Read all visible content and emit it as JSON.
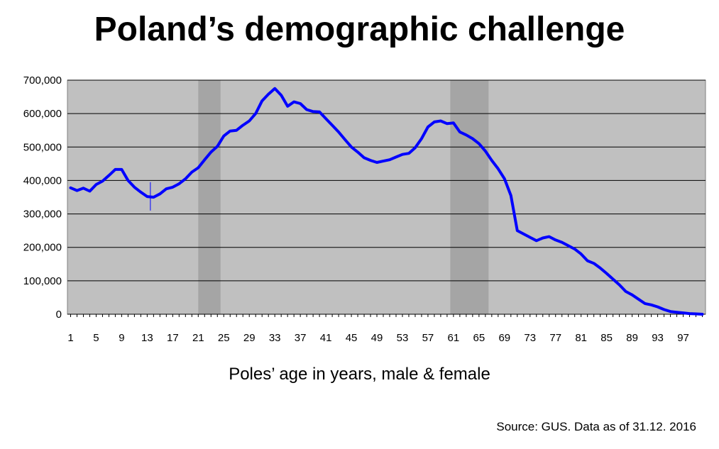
{
  "title": "Poland’s demographic challenge",
  "source": "Source: GUS. Data as of  31.12. 2016",
  "chart_data": {
    "type": "line",
    "xlabel": "Poles’ age in years, male & female",
    "ylabel": "",
    "xlim": [
      1,
      100
    ],
    "ylim": [
      0,
      700000
    ],
    "grid": true,
    "y_ticks": [
      0,
      100000,
      200000,
      300000,
      400000,
      500000,
      600000,
      700000
    ],
    "y_tick_labels": [
      "0",
      "100,000",
      "200,000",
      "300,000",
      "400,000",
      "500,000",
      "600,000",
      "700,000"
    ],
    "x_ticks": [
      1,
      5,
      9,
      13,
      17,
      21,
      25,
      29,
      33,
      37,
      41,
      45,
      49,
      53,
      57,
      61,
      65,
      69,
      73,
      77,
      81,
      85,
      89,
      93,
      97
    ],
    "x_tick_labels": [
      "1",
      "5",
      "9",
      "13",
      "17",
      "21",
      "25",
      "29",
      "33",
      "37",
      "41",
      "45",
      "49",
      "53",
      "57",
      "61",
      "65",
      "69",
      "73",
      "77",
      "81",
      "85",
      "89",
      "93",
      "97"
    ],
    "shaded_bands": [
      [
        21,
        24.5
      ],
      [
        60.5,
        66.5
      ]
    ],
    "marker_line": {
      "x": 13.5,
      "y_range": [
        310000,
        395000
      ]
    },
    "colors": {
      "line": "#0000ff",
      "plot_bg": "#c0c0c0",
      "band": "#a5a5a5",
      "grid": "#000000"
    },
    "x": [
      1,
      2,
      3,
      4,
      5,
      6,
      7,
      8,
      9,
      10,
      11,
      12,
      13,
      14,
      15,
      16,
      17,
      18,
      19,
      20,
      21,
      22,
      23,
      24,
      25,
      26,
      27,
      28,
      29,
      30,
      31,
      32,
      33,
      34,
      35,
      36,
      37,
      38,
      39,
      40,
      41,
      42,
      43,
      44,
      45,
      46,
      47,
      48,
      49,
      50,
      51,
      52,
      53,
      54,
      55,
      56,
      57,
      58,
      59,
      60,
      61,
      62,
      63,
      64,
      65,
      66,
      67,
      68,
      69,
      70,
      71,
      72,
      73,
      74,
      75,
      76,
      77,
      78,
      79,
      80,
      81,
      82,
      83,
      84,
      85,
      86,
      87,
      88,
      89,
      90,
      91,
      92,
      93,
      94,
      95,
      96,
      97,
      98,
      99,
      100
    ],
    "values": [
      378000,
      370000,
      377000,
      368000,
      388000,
      398000,
      415000,
      433000,
      433000,
      400000,
      380000,
      365000,
      352000,
      350000,
      360000,
      375000,
      380000,
      390000,
      405000,
      425000,
      438000,
      462000,
      485000,
      502000,
      533000,
      548000,
      550000,
      565000,
      578000,
      600000,
      638000,
      658000,
      675000,
      655000,
      622000,
      635000,
      630000,
      612000,
      606000,
      605000,
      585000,
      565000,
      545000,
      522000,
      500000,
      485000,
      468000,
      460000,
      454000,
      458000,
      462000,
      470000,
      478000,
      481000,
      498000,
      525000,
      560000,
      575000,
      578000,
      570000,
      572000,
      545000,
      536000,
      525000,
      510000,
      488000,
      460000,
      435000,
      405000,
      355000,
      250000,
      240000,
      230000,
      220000,
      228000,
      232000,
      222000,
      215000,
      205000,
      195000,
      180000,
      160000,
      152000,
      138000,
      122000,
      105000,
      88000,
      68000,
      58000,
      45000,
      32000,
      28000,
      22000,
      14000,
      8000,
      6000,
      4000,
      2000,
      1000,
      0
    ]
  }
}
